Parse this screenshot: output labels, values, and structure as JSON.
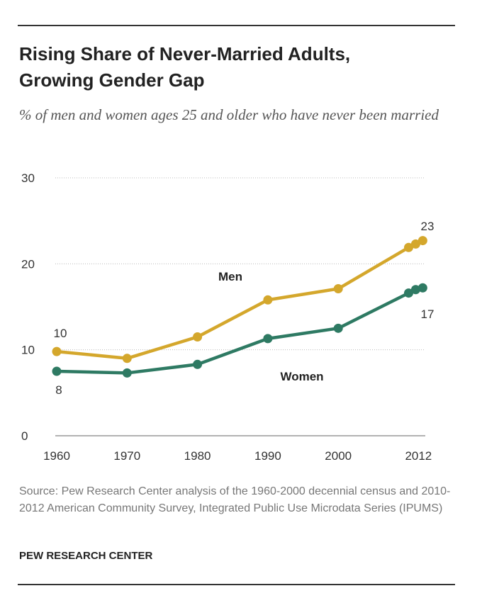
{
  "title": "Rising Share of Never-Married Adults, Growing Gender Gap",
  "title_lines": [
    "Rising Share of Never-Married Adults,",
    "Growing Gender Gap"
  ],
  "subtitle": "% of men and women ages 25 and older who have never been married",
  "source": "Source: Pew Research Center analysis of the 1960-2000 decennial census and 2010-2012 American Community Survey, Integrated Public Use Microdata Series (IPUMS)",
  "brand": "PEW RESEARCH CENTER",
  "chart_data": {
    "type": "line",
    "title": "Rising Share of Never-Married Adults, Growing Gender Gap",
    "subtitle": "% of men and women ages 25 and older who have never been married",
    "x": [
      1960,
      1970,
      1980,
      1990,
      2000,
      2010,
      2011,
      2012
    ],
    "x_tick_labels": [
      "1960",
      "1970",
      "1980",
      "1990",
      "2000",
      "2012"
    ],
    "x_ticks": [
      1960,
      1970,
      1980,
      1990,
      2000,
      2012
    ],
    "y_tick_labels": [
      "0",
      "10",
      "20",
      "30"
    ],
    "ylim": [
      0,
      30
    ],
    "grid": "horizontal dotted",
    "series": [
      {
        "name": "Men",
        "color": "#d4a72c",
        "values": [
          9.8,
          9.0,
          11.5,
          15.8,
          17.1,
          21.9,
          22.3,
          22.7
        ],
        "labels": [
          {
            "x": 1960,
            "text": "10"
          },
          {
            "x": 2012,
            "text": "23"
          }
        ]
      },
      {
        "name": "Women",
        "color": "#2e7a63",
        "values": [
          7.5,
          7.3,
          8.3,
          11.3,
          12.5,
          16.6,
          17.0,
          17.2
        ],
        "labels": [
          {
            "x": 1960,
            "text": "8"
          },
          {
            "x": 2012,
            "text": "17"
          }
        ]
      }
    ]
  }
}
